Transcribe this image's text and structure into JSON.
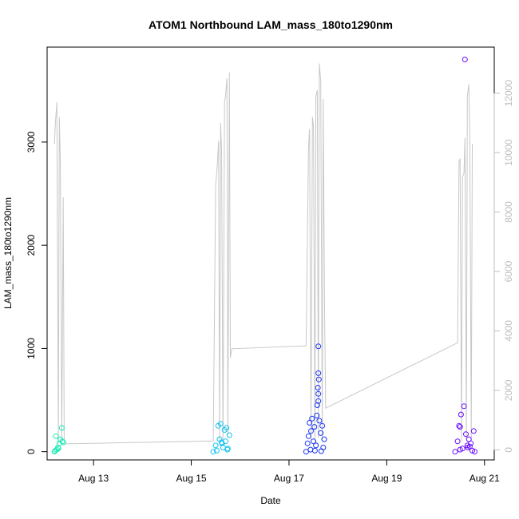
{
  "chart_data": {
    "type": "scatter",
    "title": "ATOM1 Northbound LAM_mass_180to1290nm",
    "xlabel": "Date",
    "ylabel": "LAM_mass_180to1290nm",
    "y2label": "",
    "x_ticks": [
      "Aug 13",
      "Aug 15",
      "Aug 17",
      "Aug 19",
      "Aug 21"
    ],
    "x_tick_values": [
      13,
      15,
      17,
      19,
      21
    ],
    "xlim": [
      12.05,
      21.2
    ],
    "ylim": [
      -80,
      3920
    ],
    "y_ticks": [
      0,
      1000,
      2000,
      3000
    ],
    "y2lim": [
      -340,
      13550
    ],
    "y2_ticks": [
      0,
      2000,
      4000,
      6000,
      8000,
      10000,
      12000
    ],
    "grid": false,
    "legend": "none",
    "line_color": "#c8c8c8",
    "series": [
      {
        "color": "#1de9b6",
        "x": [
          12.2,
          12.22,
          12.25,
          12.27,
          12.3,
          12.32,
          12.35,
          12.38,
          12.23,
          12.28,
          12.36
        ],
        "y": [
          0,
          10,
          20,
          40,
          80,
          120,
          230,
          90,
          150,
          30,
          100
        ]
      },
      {
        "color": "#12c2ef",
        "x": [
          15.45,
          15.5,
          15.55,
          15.58,
          15.6,
          15.63,
          15.65,
          15.68,
          15.7,
          15.72,
          15.75,
          15.78,
          15.52,
          15.62,
          15.74
        ],
        "y": [
          0,
          60,
          250,
          120,
          270,
          80,
          40,
          210,
          100,
          230,
          30,
          160,
          10,
          90,
          20
        ]
      },
      {
        "color": "#1a35f5",
        "x": [
          17.35,
          17.38,
          17.4,
          17.42,
          17.45,
          17.47,
          17.5,
          17.52,
          17.55,
          17.57,
          17.58,
          17.6,
          17.62,
          17.6,
          17.6,
          17.61,
          17.59,
          17.6,
          17.65,
          17.68,
          17.7,
          17.72,
          17.44,
          17.53,
          17.66
        ],
        "y": [
          0,
          80,
          150,
          280,
          200,
          320,
          100,
          240,
          60,
          350,
          450,
          490,
          300,
          1020,
          760,
          700,
          620,
          560,
          180,
          250,
          40,
          120,
          20,
          10,
          5
        ]
      },
      {
        "color": "#6a0dff",
        "x": [
          20.4,
          20.45,
          20.48,
          20.5,
          20.52,
          20.55,
          20.58,
          20.6,
          20.62,
          20.65,
          20.68,
          20.7,
          20.72,
          20.75,
          20.78,
          20.8,
          20.5,
          20.66
        ],
        "y": [
          0,
          100,
          250,
          240,
          360,
          30,
          440,
          3800,
          170,
          60,
          120,
          50,
          80,
          10,
          200,
          0,
          20,
          40
        ]
      }
    ],
    "line_series": {
      "x": [
        12.2,
        12.22,
        12.25,
        12.28,
        12.3,
        12.32,
        12.35,
        12.38,
        12.4,
        12.42,
        15.45,
        15.5,
        15.53,
        15.56,
        15.58,
        15.6,
        15.62,
        15.65,
        15.68,
        15.7,
        15.73,
        15.75,
        15.78,
        15.8,
        15.83,
        17.35,
        17.4,
        17.42,
        17.45,
        17.48,
        17.5,
        17.53,
        17.55,
        17.58,
        17.6,
        17.62,
        17.65,
        17.68,
        17.7,
        17.73,
        17.75,
        20.45,
        20.48,
        20.5,
        20.53,
        20.55,
        20.58,
        20.6,
        20.63,
        20.65,
        20.68,
        20.7,
        20.73,
        20.75
      ],
      "y": [
        10300,
        11000,
        11700,
        200,
        11200,
        9800,
        300,
        8500,
        400,
        200,
        300,
        8900,
        9500,
        10400,
        300,
        11000,
        10100,
        300,
        11700,
        11900,
        12500,
        500,
        12700,
        3100,
        3400,
        3500,
        10200,
        10800,
        300,
        11200,
        10900,
        200,
        11900,
        12100,
        400,
        13000,
        12400,
        300,
        11800,
        4300,
        1400,
        3600,
        9700,
        9800,
        300,
        9200,
        9300,
        10500,
        400,
        11900,
        12300,
        10600,
        400,
        10300
      ]
    }
  }
}
